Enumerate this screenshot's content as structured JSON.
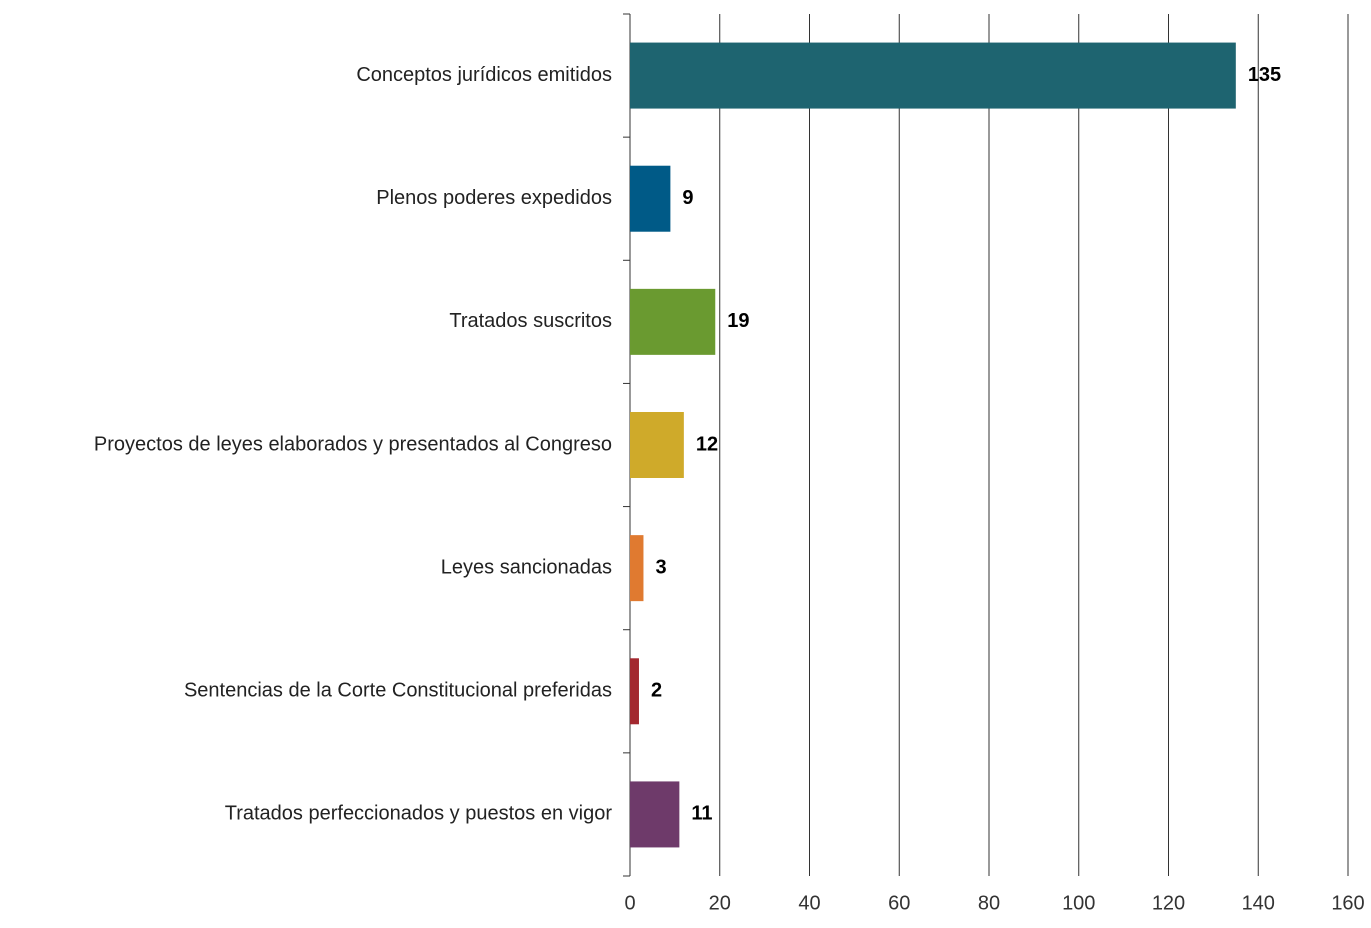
{
  "chart_data": {
    "type": "bar",
    "orientation": "horizontal",
    "categories": [
      "Conceptos jurídicos emitidos",
      "Plenos poderes expedidos",
      "Tratados suscritos",
      "Proyectos de leyes elaborados y presentados al Congreso",
      "Leyes sancionadas",
      "Sentencias de la Corte Constitucional preferidas",
      "Tratados perfeccionados y puestos en vigor"
    ],
    "values": [
      135,
      9,
      19,
      12,
      3,
      2,
      11
    ],
    "colors": [
      "#1e6470",
      "#005a87",
      "#6a9a30",
      "#cfaa2a",
      "#e07a30",
      "#a3282f",
      "#6e3a6a"
    ],
    "xlim": [
      0,
      160
    ],
    "xticks": [
      0,
      20,
      40,
      60,
      80,
      100,
      120,
      140,
      160
    ],
    "grid": true
  }
}
